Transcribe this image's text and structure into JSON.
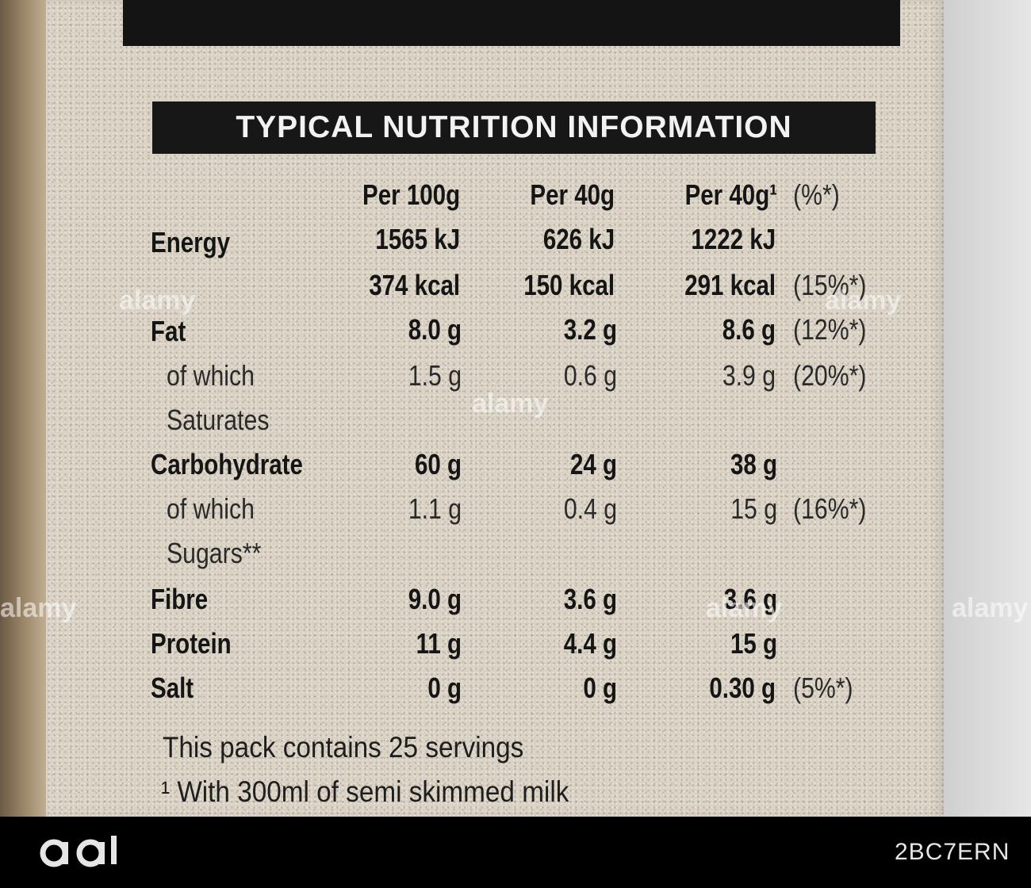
{
  "heading": "TYPICAL NUTRITION INFORMATION",
  "columns": {
    "per100": "Per 100g",
    "per40": "Per 40g",
    "per40milk": "Per 40g¹",
    "percent": "(%*)"
  },
  "rows": {
    "energy_label": "Energy",
    "energy_kj": [
      "1565 kJ",
      "626 kJ",
      "1222 kJ"
    ],
    "energy_kcal": [
      "374 kcal",
      "150 kcal",
      "291 kcal",
      "(15%*)"
    ],
    "fat_label": "Fat",
    "fat": [
      "8.0 g",
      "3.2 g",
      "8.6 g",
      "(12%*)"
    ],
    "sat_label_1": "of which",
    "sat_label_2": "Saturates",
    "sat": [
      "1.5 g",
      "0.6 g",
      "3.9 g",
      "(20%*)"
    ],
    "carb_label": "Carbohydrate",
    "carb": [
      "60 g",
      "24 g",
      "38 g"
    ],
    "sugar_label_1": "of which",
    "sugar_label_2": "Sugars**",
    "sugar": [
      "1.1 g",
      "0.4 g",
      "15 g",
      "(16%*)"
    ],
    "fibre_label": "Fibre",
    "fibre": [
      "9.0 g",
      "3.6 g",
      "3.6 g"
    ],
    "protein_label": "Protein",
    "protein": [
      "11 g",
      "4.4 g",
      "15 g"
    ],
    "salt_label": "Salt",
    "salt": [
      "0 g",
      "0 g",
      "0.30 g",
      "(5%*)"
    ]
  },
  "footnotes": {
    "servings": "This pack contains 25 servings",
    "milk": "¹ With 300ml of semi skimmed milk"
  },
  "watermark": "alamy",
  "stock_id": "2BC7ERN"
}
